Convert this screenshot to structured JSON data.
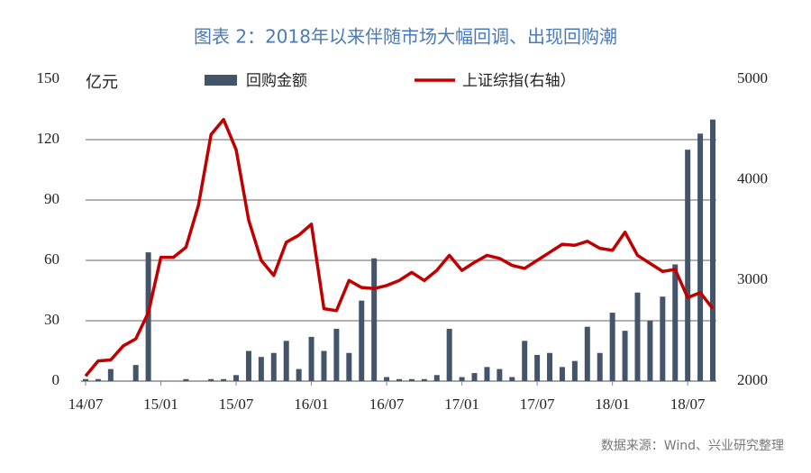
{
  "chart_data": {
    "type": "bar-line",
    "title": "图表 2：2018年以来伴随市场大幅回调、出现回购潮",
    "y_label": "亿元",
    "source": "数据来源：Wind、兴业研究整理",
    "categories": [
      "14/07",
      null,
      null,
      null,
      null,
      null,
      "15/01",
      null,
      null,
      null,
      null,
      null,
      "15/07",
      null,
      null,
      null,
      null,
      null,
      "16/01",
      null,
      null,
      null,
      null,
      null,
      "16/07",
      null,
      null,
      null,
      null,
      null,
      "17/01",
      null,
      null,
      null,
      null,
      null,
      "17/07",
      null,
      null,
      null,
      null,
      null,
      "18/01",
      null,
      null,
      null,
      null,
      null,
      "18/07",
      null,
      null
    ],
    "series": [
      {
        "name": "回购金额",
        "type": "bar",
        "color": "#44546a",
        "values": [
          1,
          1,
          6,
          0,
          8,
          64,
          0,
          0,
          1,
          0,
          1,
          1,
          3,
          15,
          12,
          14,
          20,
          6,
          22,
          15,
          26,
          14,
          40,
          61,
          2,
          1,
          1,
          1,
          3,
          26,
          2,
          4,
          7,
          6,
          2,
          20,
          13,
          14,
          7,
          10,
          27,
          14,
          34,
          25,
          44,
          30,
          42,
          58,
          115,
          123,
          130
        ]
      },
      {
        "name": "上证综指(右轴）",
        "type": "line",
        "axis": "y2",
        "color": "#c00000",
        "values": [
          2050,
          2200,
          2210,
          2350,
          2420,
          2680,
          3230,
          3230,
          3330,
          3750,
          4450,
          4600,
          4300,
          3600,
          3200,
          3050,
          3380,
          3450,
          3560,
          2720,
          2700,
          3000,
          2930,
          2920,
          2950,
          3000,
          3080,
          3000,
          3100,
          3250,
          3100,
          3180,
          3250,
          3220,
          3150,
          3120,
          3200,
          3280,
          3360,
          3350,
          3390,
          3320,
          3300,
          3480,
          3250,
          3170,
          3090,
          3110,
          2830,
          2880,
          2720
        ]
      }
    ],
    "ylim": [
      0,
      150
    ],
    "yticks": [
      0,
      30,
      60,
      90,
      120,
      150
    ],
    "y2lim": [
      2000,
      5000
    ],
    "y2ticks": [
      2000,
      3000,
      4000,
      5000
    ],
    "grid": true
  }
}
